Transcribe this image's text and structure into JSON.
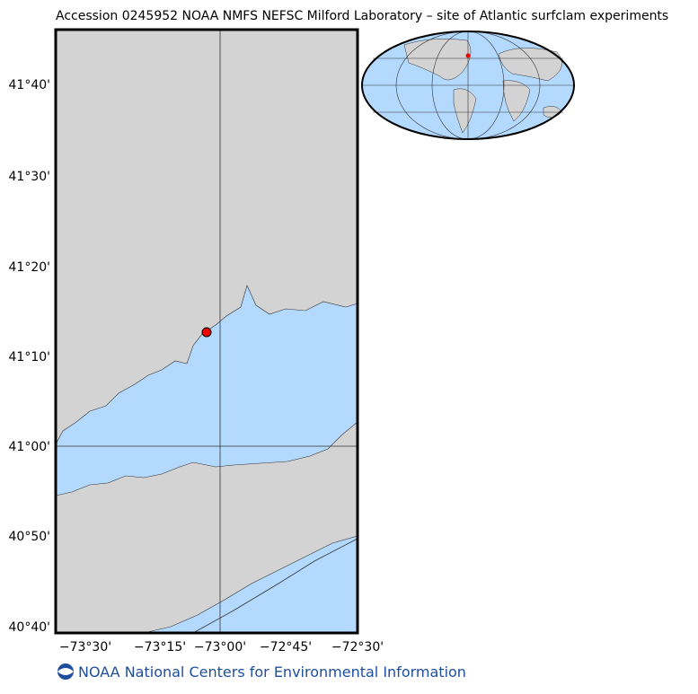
{
  "map": {
    "title": "Accession 0245952 NOAA NMFS NEFSC Milford Laboratory – site of Atlantic surfclam experiments",
    "lat_ticks": [
      "41°40'",
      "41°30'",
      "41°20'",
      "41°10'",
      "41°00'",
      "40°50'",
      "40°40'"
    ],
    "lon_ticks": [
      "−73°30'",
      "−73°15'",
      "−73°00'",
      "−72°45'",
      "−72°30'"
    ],
    "footer": "NOAA National Centers for Environmental Information"
  }
}
